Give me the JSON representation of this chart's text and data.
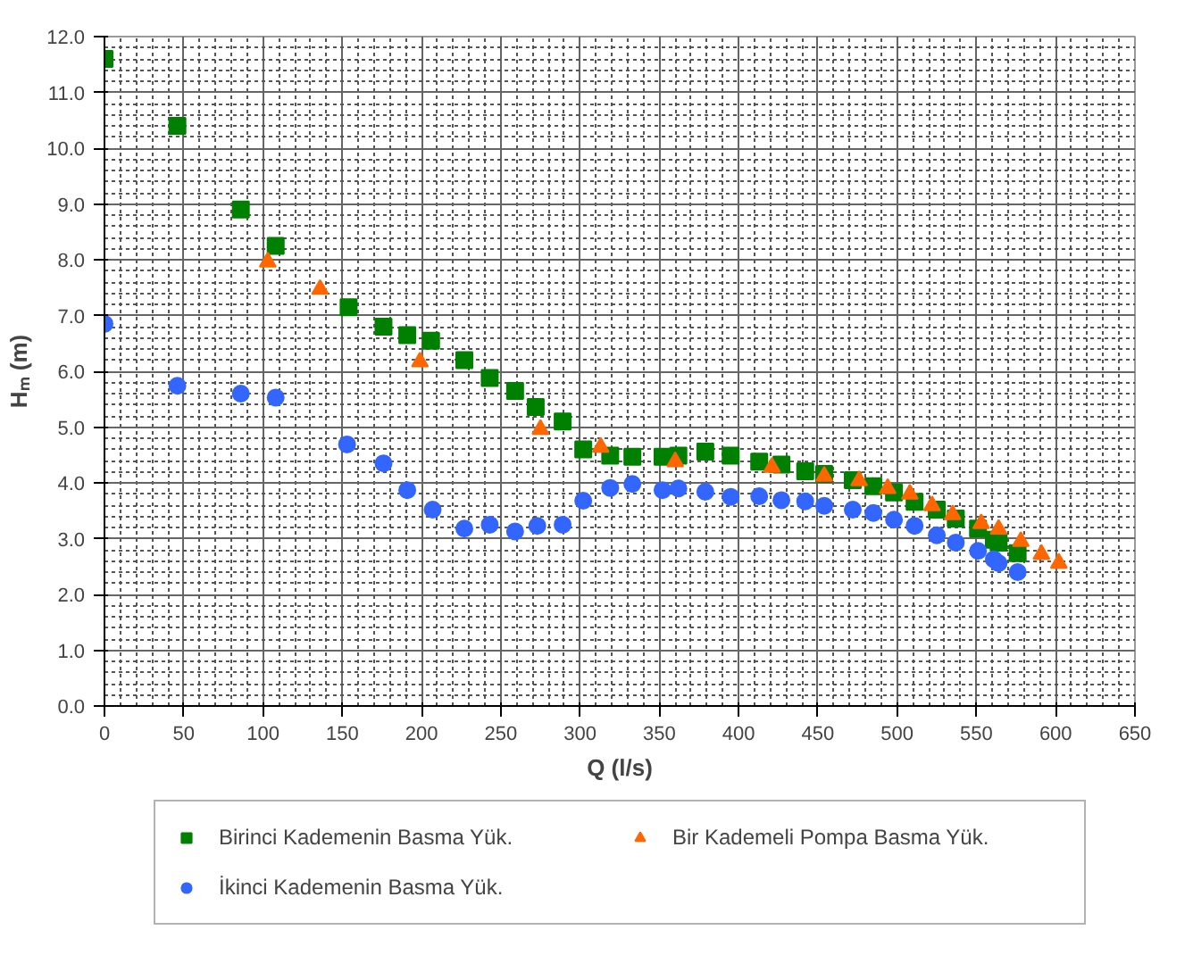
{
  "chart_data": {
    "type": "scatter",
    "xlabel": "Q (l/s)",
    "ylabel": "Hₘ (m)",
    "xlim": [
      0,
      650
    ],
    "xticks": [
      0,
      50,
      100,
      150,
      200,
      250,
      300,
      350,
      400,
      450,
      500,
      550,
      600,
      650
    ],
    "ylim": [
      0,
      12
    ],
    "yticks": [
      {
        "value": 0,
        "label": "0.0"
      },
      {
        "value": 1,
        "label": "1.0"
      },
      {
        "value": 2,
        "label": "2.0"
      },
      {
        "value": 3,
        "label": "3.0"
      },
      {
        "value": 4,
        "label": "4.0"
      },
      {
        "value": 5,
        "label": "5.0"
      },
      {
        "value": 6,
        "label": "6.0"
      },
      {
        "value": 7,
        "label": "7.0"
      },
      {
        "value": 8,
        "label": "8.0"
      },
      {
        "value": 9,
        "label": "9.0"
      },
      {
        "value": 10,
        "label": "10.0"
      },
      {
        "value": 11,
        "label": "11.0"
      },
      {
        "value": 12,
        "label": "12.0"
      }
    ],
    "grid": true,
    "legend": "bottom",
    "series": [
      {
        "name": "Birinci Kademenin Basma Yük.",
        "color": "#008000",
        "marker": "square",
        "x": [
          0,
          46,
          86,
          108,
          154,
          176,
          191,
          206,
          227,
          243,
          259,
          272,
          289,
          302,
          319,
          333,
          352,
          362,
          379,
          395,
          413,
          427,
          442,
          454,
          472,
          485,
          498,
          511,
          525,
          537,
          551,
          561,
          564,
          576
        ],
        "values": [
          11.6,
          10.4,
          8.9,
          8.25,
          7.15,
          6.8,
          6.65,
          6.55,
          6.2,
          5.88,
          5.65,
          5.36,
          5.1,
          4.6,
          4.49,
          4.47,
          4.47,
          4.49,
          4.56,
          4.49,
          4.38,
          4.33,
          4.21,
          4.16,
          4.05,
          3.94,
          3.83,
          3.66,
          3.52,
          3.36,
          3.18,
          2.98,
          2.93,
          2.74
        ]
      },
      {
        "name": "İkinci Kademenin Basma Yük.",
        "color": "#3366ff",
        "marker": "circle",
        "x": [
          0,
          46,
          86,
          108,
          153,
          176,
          191,
          207,
          227,
          243,
          259,
          273,
          289,
          302,
          319,
          333,
          352,
          362,
          379,
          395,
          413,
          427,
          442,
          454,
          472,
          485,
          498,
          511,
          525,
          537,
          551,
          561,
          564,
          576
        ],
        "values": [
          6.85,
          5.74,
          5.6,
          5.53,
          4.69,
          4.35,
          3.87,
          3.52,
          3.18,
          3.25,
          3.13,
          3.23,
          3.25,
          3.68,
          3.91,
          3.98,
          3.87,
          3.9,
          3.84,
          3.75,
          3.76,
          3.69,
          3.67,
          3.59,
          3.52,
          3.46,
          3.34,
          3.23,
          3.06,
          2.93,
          2.78,
          2.63,
          2.56,
          2.4
        ]
      },
      {
        "name": "Bir Kademeli Pompa Basma Yük.",
        "color": "#ff6600",
        "marker": "triangle",
        "x": [
          103,
          136,
          199,
          275,
          313,
          360,
          421,
          454,
          476,
          494,
          508,
          522,
          535,
          553,
          564,
          578,
          591,
          602
        ],
        "values": [
          7.96,
          7.47,
          6.17,
          4.96,
          4.64,
          4.38,
          4.28,
          4.12,
          4.04,
          3.9,
          3.8,
          3.59,
          3.43,
          3.27,
          3.17,
          2.95,
          2.72,
          2.56
        ]
      }
    ]
  }
}
